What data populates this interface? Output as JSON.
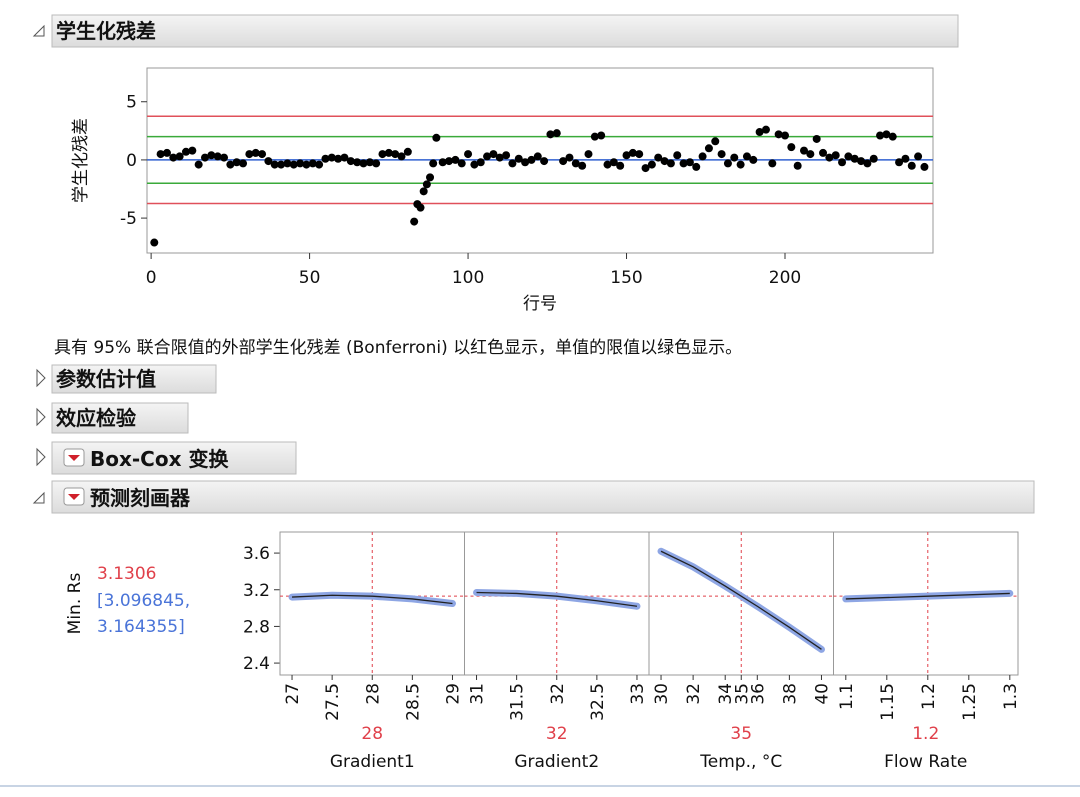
{
  "headers": [
    "学生化残差",
    "参数估计值",
    "效应检验",
    "Box-Cox 变换",
    "预测刻画器"
  ],
  "note": "具有 95% 联合限值的外部学生化残差 (Bonferroni) 以红色显示，单值的限值以绿色显示。",
  "chart_data": [
    {
      "type": "scatter",
      "ylabel": "学生化残差",
      "xlabel": "行号",
      "color": "#000000",
      "xlim": [
        -1.3,
        246.7
      ],
      "xticks": [
        0,
        50,
        100,
        150,
        200
      ],
      "ylim": [
        -8,
        7.9
      ],
      "yticks": [
        -5,
        0,
        5
      ],
      "reference_lines": [
        {
          "value": 3.75,
          "color": "#e0505a"
        },
        {
          "value": -3.75,
          "color": "#e0505a"
        },
        {
          "value": 2.0,
          "color": "#3aaa3a"
        },
        {
          "value": -2.0,
          "color": "#3aaa3a"
        },
        {
          "value": 0,
          "color": "#3060d0"
        }
      ],
      "x": [
        1,
        3,
        5,
        7,
        9,
        11,
        13,
        15,
        17,
        19,
        21,
        23,
        25,
        27,
        29,
        31,
        33,
        35,
        37,
        39,
        41,
        43,
        45,
        47,
        49,
        51,
        53,
        55,
        57,
        59,
        61,
        63,
        65,
        67,
        69,
        71,
        73,
        75,
        77,
        79,
        81,
        83,
        84,
        85,
        86,
        87,
        88,
        89,
        90,
        92,
        94,
        96,
        98,
        100,
        102,
        104,
        106,
        108,
        110,
        112,
        114,
        116,
        118,
        120,
        122,
        124,
        126,
        128,
        130,
        132,
        134,
        136,
        138,
        140,
        142,
        144,
        146,
        148,
        150,
        152,
        154,
        156,
        158,
        160,
        162,
        164,
        166,
        168,
        170,
        172,
        174,
        176,
        178,
        180,
        182,
        184,
        186,
        188,
        190,
        192,
        194,
        196,
        198,
        200,
        202,
        204,
        206,
        208,
        210,
        212,
        214,
        216,
        218,
        220,
        222,
        224,
        226,
        228,
        230,
        232,
        234,
        236,
        238,
        240,
        242,
        244
      ],
      "values": [
        -7.1,
        0.5,
        0.6,
        0.2,
        0.3,
        0.7,
        0.8,
        -0.4,
        0.2,
        0.4,
        0.3,
        0.2,
        -0.4,
        -0.2,
        -0.3,
        0.5,
        0.6,
        0.5,
        -0.1,
        -0.4,
        -0.4,
        -0.3,
        -0.4,
        -0.3,
        -0.4,
        -0.3,
        -0.4,
        0.1,
        0.2,
        0.1,
        0.2,
        -0.1,
        -0.2,
        -0.3,
        -0.2,
        -0.3,
        0.5,
        0.6,
        0.5,
        0.3,
        0.7,
        -5.3,
        -3.8,
        -4.1,
        -2.7,
        -2.1,
        -1.5,
        -0.3,
        1.9,
        -0.2,
        -0.1,
        0.0,
        -0.3,
        0.5,
        -0.4,
        -0.2,
        0.3,
        0.5,
        0.2,
        0.4,
        -0.3,
        0.1,
        -0.2,
        0.0,
        0.3,
        -0.1,
        2.2,
        2.3,
        -0.1,
        0.2,
        -0.3,
        -0.5,
        0.5,
        2.0,
        2.1,
        -0.4,
        -0.2,
        -0.5,
        0.4,
        0.6,
        0.5,
        -0.7,
        -0.4,
        0.2,
        -0.1,
        -0.3,
        0.4,
        -0.3,
        -0.2,
        -0.6,
        0.3,
        1.0,
        1.6,
        0.5,
        -0.3,
        0.2,
        -0.4,
        0.3,
        0.0,
        2.4,
        2.6,
        -0.3,
        2.2,
        2.1,
        1.1,
        -0.5,
        0.8,
        0.5,
        1.8,
        0.6,
        0.2,
        0.4,
        -0.2,
        0.3,
        0.1,
        -0.1,
        -0.3,
        0.1,
        2.1,
        2.2,
        2.0,
        -0.2,
        0.1,
        -0.5,
        0.3,
        -0.6
      ]
    },
    {
      "type": "profiler",
      "ylabel": "Min. Rs",
      "current_value": 3.1306,
      "interval_labels": [
        "[3.096845,",
        "3.164355]"
      ],
      "ylim": [
        2.27,
        3.83
      ],
      "yticks": [
        2.4,
        2.8,
        3.2,
        3.6
      ],
      "panels": [
        {
          "factor": "Gradient1",
          "current": 28,
          "xlim": [
            26.85,
            29.15
          ],
          "xticks": [
            27,
            27.5,
            28,
            28.5,
            29
          ],
          "x": [
            27,
            27.5,
            28,
            28.5,
            29
          ],
          "values": [
            3.12,
            3.14,
            3.13,
            3.1,
            3.05
          ]
        },
        {
          "factor": "Gradient2",
          "current": 32,
          "xlim": [
            30.85,
            33.15
          ],
          "xticks": [
            31,
            31.5,
            32,
            32.5,
            33
          ],
          "x": [
            31,
            31.5,
            32,
            32.5,
            33
          ],
          "values": [
            3.17,
            3.16,
            3.13,
            3.08,
            3.02
          ]
        },
        {
          "factor": "Temp., °C",
          "current": 35,
          "xlim": [
            29.25,
            40.75
          ],
          "xticks": [
            30,
            32,
            34,
            35,
            36,
            38,
            40
          ],
          "x": [
            30,
            32,
            34,
            35,
            36,
            38,
            40
          ],
          "values": [
            3.62,
            3.45,
            3.24,
            3.13,
            3.02,
            2.79,
            2.55
          ]
        },
        {
          "factor": "Flow Rate",
          "current": 1.2,
          "xlim": [
            1.085,
            1.31
          ],
          "xticks": [
            1.1,
            1.15,
            1.2,
            1.25,
            1.3
          ],
          "x": [
            1.1,
            1.2,
            1.3
          ],
          "values": [
            3.1,
            3.13,
            3.16
          ]
        }
      ]
    }
  ]
}
